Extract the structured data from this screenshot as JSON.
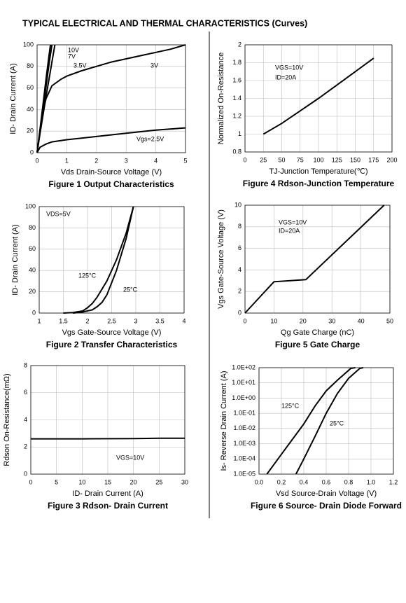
{
  "header": "TYPICAL ELECTRICAL AND THERMAL CHARACTERISTICS (Curves)",
  "chart_data": [
    {
      "type": "line",
      "title": "Figure 1 Output Characteristics",
      "x_label": "Vds Drain-Source Voltage (V)",
      "y_label": "ID- Drain Current (A)",
      "xlim": [
        0,
        5
      ],
      "xticks": [
        0,
        1,
        2,
        3,
        4,
        5
      ],
      "ylim": [
        0,
        100
      ],
      "yticks": [
        0,
        20,
        40,
        60,
        80,
        100
      ],
      "grid": true,
      "series": [
        {
          "name": "10V",
          "color": "#000000",
          "x": [
            0,
            0.1,
            0.2,
            0.3,
            0.4,
            0.45
          ],
          "y": [
            0,
            22,
            45,
            68,
            90,
            100
          ]
        },
        {
          "name": "7V",
          "color": "#000000",
          "x": [
            0,
            0.1,
            0.2,
            0.3,
            0.4,
            0.5
          ],
          "y": [
            0,
            20,
            40,
            61,
            82,
            100
          ]
        },
        {
          "name": "3.5V",
          "color": "#000000",
          "x": [
            0,
            0.1,
            0.2,
            0.3,
            0.4,
            0.5,
            0.6
          ],
          "y": [
            0,
            18,
            35,
            52,
            68,
            84,
            100
          ]
        },
        {
          "name": "3V",
          "color": "#000000",
          "x": [
            0,
            0.1,
            0.2,
            0.3,
            0.5,
            0.8,
            1,
            1.5,
            2,
            2.5,
            3,
            3.5,
            4,
            4.5,
            5
          ],
          "y": [
            0,
            20,
            38,
            50,
            62,
            68,
            71,
            76,
            80,
            84,
            87,
            90,
            93,
            96,
            100
          ]
        },
        {
          "name": "Vgs=2.5V",
          "color": "#000000",
          "x": [
            0,
            0.1,
            0.3,
            0.5,
            1,
            2,
            3,
            4,
            5
          ],
          "y": [
            0,
            5,
            8,
            10,
            12,
            15,
            18,
            21,
            23
          ]
        }
      ]
    },
    {
      "type": "line",
      "title": "Figure 4 Rdson-Junction Temperature",
      "x_label": "TJ-Junction Temperature(℃)",
      "y_label": "Normalized On-Resistance",
      "xlim": [
        0,
        200
      ],
      "xticks": [
        0,
        25,
        50,
        75,
        100,
        125,
        150,
        175,
        200
      ],
      "ylim": [
        0.8,
        2
      ],
      "yticks": [
        0.8,
        1,
        1.2,
        1.4,
        1.6,
        1.8,
        2
      ],
      "grid": true,
      "annotations": [
        "VGS=10V",
        "ID=20A"
      ],
      "series": [
        {
          "color": "#000000",
          "x": [
            25,
            50,
            75,
            100,
            125,
            150,
            175
          ],
          "y": [
            1,
            1.12,
            1.26,
            1.4,
            1.55,
            1.7,
            1.85
          ]
        }
      ]
    },
    {
      "type": "line",
      "title": "Figure 2 Transfer Characteristics",
      "x_label": "Vgs Gate-Source Voltage (V)",
      "y_label": "ID- Drain Current (A)",
      "xlim": [
        1,
        4
      ],
      "xticks": [
        1,
        1.5,
        2,
        2.5,
        3,
        3.5,
        4
      ],
      "ylim": [
        0,
        100
      ],
      "yticks": [
        0,
        20,
        40,
        60,
        80,
        100
      ],
      "grid": true,
      "annotations": [
        "VDS=5V"
      ],
      "series": [
        {
          "name": "125°C",
          "color": "#000000",
          "x": [
            1.5,
            1.7,
            1.9,
            2,
            2.1,
            2.2,
            2.4,
            2.6,
            2.8,
            2.95
          ],
          "y": [
            0,
            0.5,
            2,
            5,
            9,
            15,
            30,
            50,
            75,
            100
          ]
        },
        {
          "name": "25°C",
          "color": "#000000",
          "x": [
            1.7,
            1.9,
            2.1,
            2.2,
            2.3,
            2.4,
            2.6,
            2.8,
            2.95
          ],
          "y": [
            0,
            1,
            3,
            6,
            10,
            17,
            40,
            70,
            100
          ]
        }
      ]
    },
    {
      "type": "line",
      "title": "Figure 5 Gate Charge",
      "x_label": "Qg Gate Charge (nC)",
      "y_label": "Vgs Gate-Source Voltage (V)",
      "xlim": [
        0,
        50
      ],
      "xticks": [
        0,
        10,
        20,
        30,
        40,
        50
      ],
      "ylim": [
        0,
        10
      ],
      "yticks": [
        0,
        2,
        4,
        6,
        8,
        10
      ],
      "grid": true,
      "annotations": [
        "VGS=10V",
        "ID=20A"
      ],
      "series": [
        {
          "color": "#000000",
          "x": [
            0,
            10,
            21,
            48
          ],
          "y": [
            0,
            2.9,
            3.1,
            10
          ]
        }
      ]
    },
    {
      "type": "line",
      "title": "Figure 3 Rdson- Drain Current",
      "x_label": "ID- Drain Current (A)",
      "y_label": "Rdson On-Resistance(mΩ)",
      "xlim": [
        0,
        30
      ],
      "xticks": [
        0,
        5,
        10,
        15,
        20,
        25,
        30
      ],
      "ylim": [
        0,
        8
      ],
      "yticks": [
        0,
        2,
        4,
        6,
        8
      ],
      "grid": true,
      "annotations": [
        "VGS=10V"
      ],
      "series": [
        {
          "color": "#000000",
          "x": [
            0,
            10,
            20,
            25,
            30
          ],
          "y": [
            2.6,
            2.6,
            2.62,
            2.65,
            2.65
          ]
        }
      ]
    },
    {
      "type": "line",
      "title": "Figure 6 Source- Drain Diode Forward",
      "x_label": "Vsd Source-Drain Voltage (V)",
      "y_label": "Is- Reverse Drain Current (A)",
      "log_y": true,
      "xlim": [
        0,
        1.2
      ],
      "xticks": [
        {
          "value": 0,
          "label": "0.0"
        },
        0.2,
        0.4,
        0.6,
        0.8,
        {
          "value": 1,
          "label": "1.0"
        },
        1.2
      ],
      "ylim": [
        1e-05,
        100
      ],
      "yticks": [
        {
          "value": 1e-05,
          "label": "1.0E-05"
        },
        {
          "value": 0.0001,
          "label": "1.0E-04"
        },
        {
          "value": 0.001,
          "label": "1.0E-03"
        },
        {
          "value": 0.01,
          "label": "1.0E-02"
        },
        {
          "value": 0.1,
          "label": "1.0E-01"
        },
        {
          "value": 1,
          "label": "1.0E+00"
        },
        {
          "value": 10,
          "label": "1.0E+01"
        },
        {
          "value": 100,
          "label": "1.0E+02"
        }
      ],
      "grid": true,
      "series": [
        {
          "name": "125°C",
          "color": "#000000",
          "x": [
            0.07,
            0.2,
            0.3,
            0.4,
            0.5,
            0.6,
            0.7,
            0.82,
            0.86
          ],
          "y": [
            1e-05,
            0.0002,
            0.002,
            0.02,
            0.3,
            3,
            15,
            90,
            100
          ]
        },
        {
          "name": "25°C",
          "color": "#000000",
          "x": [
            0.33,
            0.4,
            0.5,
            0.6,
            0.7,
            0.8,
            0.9,
            0.93
          ],
          "y": [
            1e-05,
            0.0001,
            0.003,
            0.1,
            2,
            20,
            90,
            100
          ]
        }
      ]
    }
  ]
}
